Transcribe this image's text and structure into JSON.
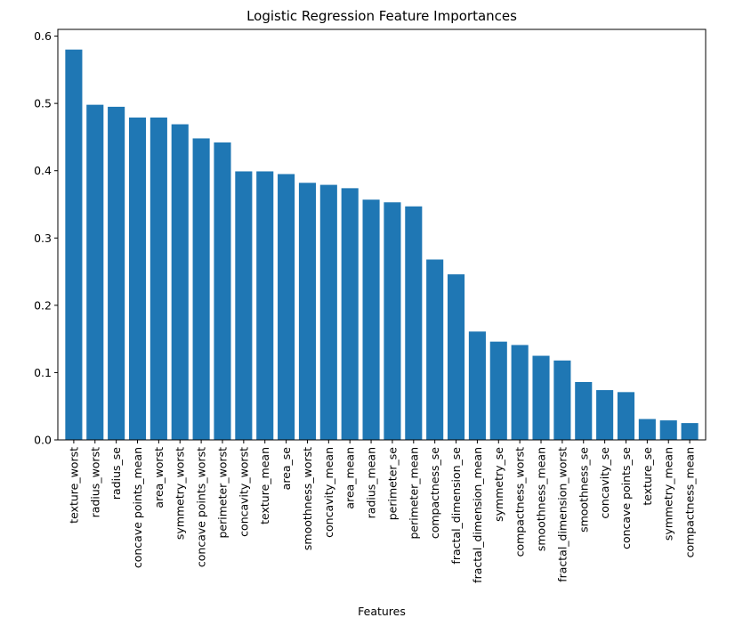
{
  "chart_data": {
    "type": "bar",
    "title": "Logistic Regression Feature Importances",
    "xlabel": "Features",
    "ylabel": "",
    "ylim": [
      0,
      0.61
    ],
    "yticks": [
      "0.0",
      "0.1",
      "0.2",
      "0.3",
      "0.4",
      "0.5",
      "0.6"
    ],
    "ytick_values": [
      0,
      0.1,
      0.2,
      0.3,
      0.4,
      0.5,
      0.6
    ],
    "grid": false,
    "bar_color": "#1f77b4",
    "categories": [
      "texture_worst",
      "radius_worst",
      "radius_se",
      "concave points_mean",
      "area_worst",
      "symmetry_worst",
      "concave points_worst",
      "perimeter_worst",
      "concavity_worst",
      "texture_mean",
      "area_se",
      "smoothness_worst",
      "concavity_mean",
      "area_mean",
      "radius_mean",
      "perimeter_se",
      "perimeter_mean",
      "compactness_se",
      "fractal_dimension_se",
      "fractal_dimension_mean",
      "symmetry_se",
      "compactness_worst",
      "smoothness_mean",
      "fractal_dimension_worst",
      "smoothness_se",
      "concavity_se",
      "concave points_se",
      "texture_se",
      "symmetry_mean",
      "compactness_mean"
    ],
    "values": [
      0.58,
      0.498,
      0.495,
      0.479,
      0.479,
      0.469,
      0.448,
      0.442,
      0.399,
      0.399,
      0.395,
      0.382,
      0.379,
      0.374,
      0.357,
      0.353,
      0.347,
      0.268,
      0.246,
      0.161,
      0.146,
      0.141,
      0.125,
      0.118,
      0.086,
      0.074,
      0.071,
      0.031,
      0.029,
      0.025
    ]
  }
}
